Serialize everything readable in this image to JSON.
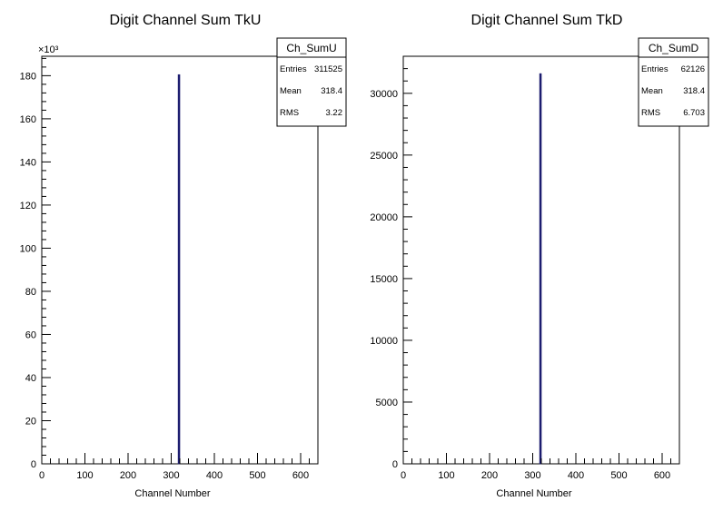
{
  "chart_data": [
    {
      "type": "bar",
      "title": "Digit Channel Sum TkU",
      "xlabel": "Channel Number",
      "ylabel": "",
      "exponent_label": "×10³",
      "x_ticks": [
        0,
        100,
        200,
        300,
        400,
        500,
        600
      ],
      "y_ticks": [
        0,
        20,
        40,
        60,
        80,
        100,
        120,
        140,
        160,
        180
      ],
      "xlim": [
        0,
        640
      ],
      "ylim": [
        0,
        189
      ],
      "bins": [
        {
          "x": 318,
          "value": 180.5
        }
      ],
      "stats": {
        "name": "Ch_SumU",
        "rows": [
          {
            "label": "Entries",
            "value": "311525"
          },
          {
            "label": "Mean",
            "value": "318.4"
          },
          {
            "label": "RMS",
            "value": "3.22"
          }
        ]
      },
      "bar_color": "#1a1a6e",
      "grid": false
    },
    {
      "type": "bar",
      "title": "Digit Channel Sum TkD",
      "xlabel": "Channel Number",
      "ylabel": "",
      "exponent_label": "",
      "x_ticks": [
        0,
        100,
        200,
        300,
        400,
        500,
        600
      ],
      "y_ticks": [
        0,
        5000,
        10000,
        15000,
        20000,
        25000,
        30000
      ],
      "xlim": [
        0,
        640
      ],
      "ylim": [
        0,
        33000
      ],
      "bins": [
        {
          "x": 318,
          "value": 31600
        }
      ],
      "stats": {
        "name": "Ch_SumD",
        "rows": [
          {
            "label": "Entries",
            "value": "62126"
          },
          {
            "label": "Mean",
            "value": "318.4"
          },
          {
            "label": "RMS",
            "value": "6.703"
          }
        ]
      },
      "bar_color": "#1a1a6e",
      "grid": false
    }
  ]
}
